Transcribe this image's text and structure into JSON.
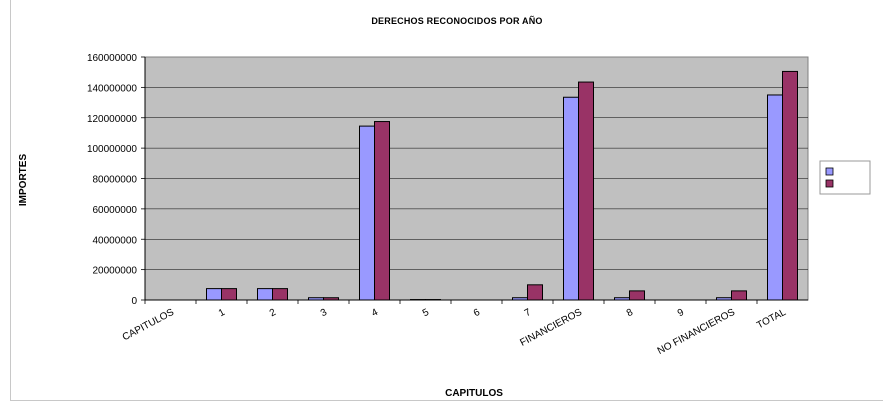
{
  "chart_data": {
    "type": "bar",
    "title": "DERECHOS RECONOCIDOS POR AÑO",
    "xlabel": "CAPITULOS",
    "ylabel": "IMPORTES",
    "ylim": [
      0,
      160000000
    ],
    "yticks": [
      "0",
      "20000000",
      "40000000",
      "60000000",
      "80000000",
      "100000000",
      "120000000",
      "140000000",
      "160000000"
    ],
    "categories": [
      "CAPITULOS",
      "1",
      "2",
      "3",
      "4",
      "5",
      "6",
      "7",
      "FINANCIEROS",
      "8",
      "9",
      "NO FINANCIEROS",
      "TOTAL"
    ],
    "series": [
      {
        "color": "#9999ff",
        "values": [
          0,
          7500000,
          7500000,
          1500000,
          114500000,
          300000,
          0,
          1500000,
          133500000,
          1500000,
          0,
          1500000,
          135000000
        ]
      },
      {
        "color": "#993366",
        "values": [
          0,
          7500000,
          7500000,
          1500000,
          117500000,
          300000,
          0,
          10000000,
          143500000,
          6000000,
          0,
          6000000,
          150500000
        ]
      }
    ],
    "grid": true,
    "plot_background": "#c0c0c0",
    "legend_position": "right",
    "legend_labels_visible": false
  }
}
